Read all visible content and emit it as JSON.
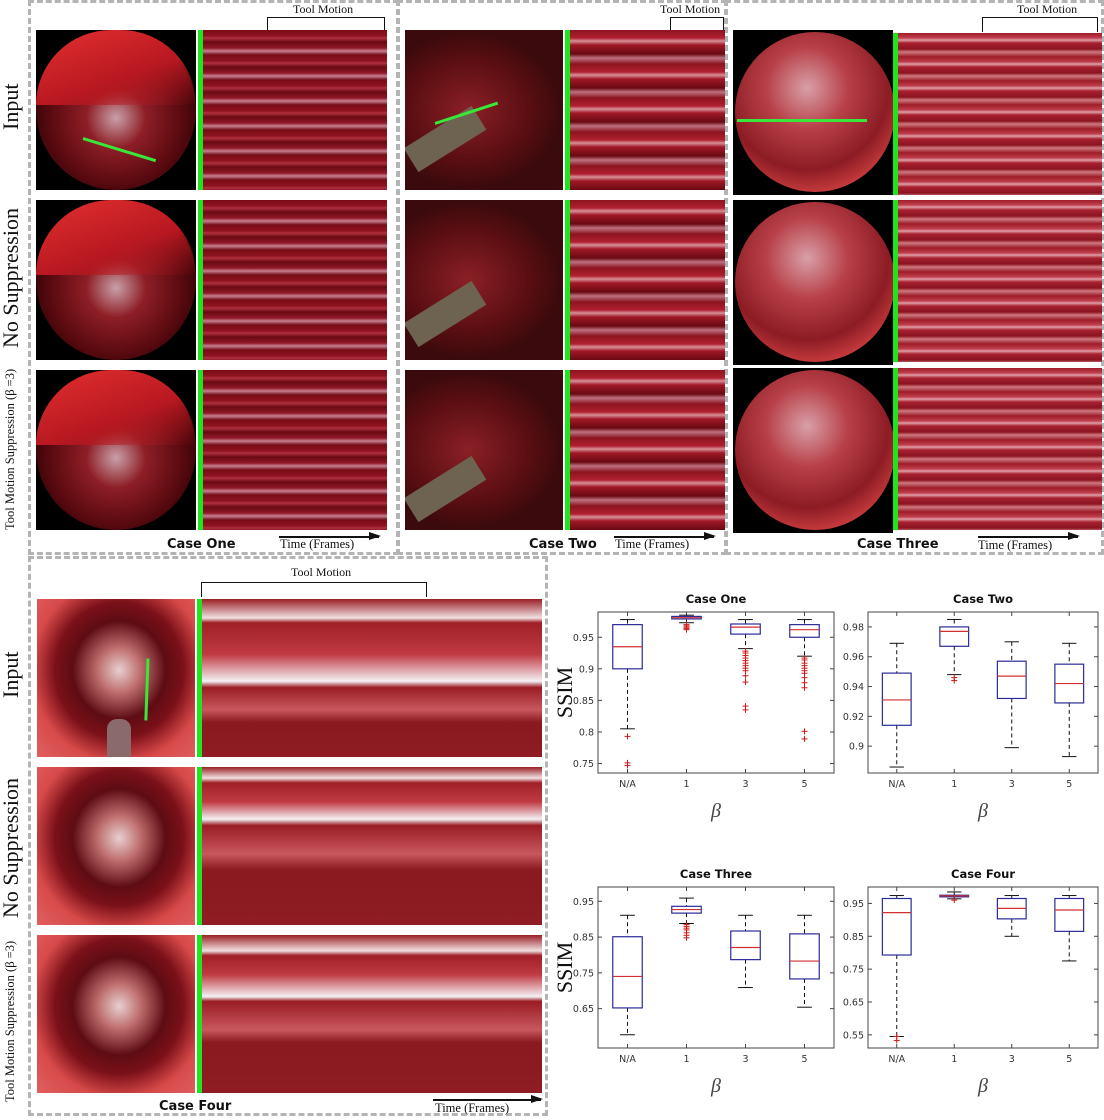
{
  "figure": {
    "row_labels": {
      "input": "Input",
      "no_suppression": "No Suppression",
      "suppression": "Tool Motion Suppression (β =3)"
    },
    "tool_motion_label": "Tool Motion",
    "time_label": "Time (Frames)",
    "cases": [
      {
        "id": "case-one",
        "title": "Case One"
      },
      {
        "id": "case-two",
        "title": "Case Two"
      },
      {
        "id": "case-three",
        "title": "Case Three"
      },
      {
        "id": "case-four",
        "title": "Case Four"
      }
    ],
    "colors": {
      "indicator_line": "#1ee51e",
      "panel_border": "#b4b4b4",
      "box": "#2b2b9a",
      "median": "#d03030",
      "outlier": "#d01818"
    }
  },
  "chart_data": [
    {
      "type": "box",
      "title": "Case One",
      "xlabel": "β",
      "ylabel": "SSIM",
      "categories": [
        "N/A",
        "1",
        "3",
        "5"
      ],
      "yticks": [
        0.75,
        0.8,
        0.85,
        0.9,
        0.95
      ],
      "ylim": [
        0.735,
        0.99
      ],
      "grid": false,
      "boxes": [
        {
          "whisker_low": 0.805,
          "q1": 0.9,
          "median": 0.935,
          "q3": 0.97,
          "whisker_high": 0.978,
          "outliers": [
            0.793,
            0.751,
            0.747
          ]
        },
        {
          "whisker_low": 0.973,
          "q1": 0.979,
          "median": 0.981,
          "q3": 0.983,
          "whisker_high": 0.985,
          "outliers": [
            0.97,
            0.968,
            0.966,
            0.964,
            0.962
          ]
        },
        {
          "whisker_low": 0.932,
          "q1": 0.955,
          "median": 0.966,
          "q3": 0.971,
          "whisker_high": 0.978,
          "outliers": [
            0.928,
            0.925,
            0.921,
            0.917,
            0.913,
            0.909,
            0.905,
            0.901,
            0.897,
            0.889,
            0.879,
            0.841,
            0.835
          ]
        },
        {
          "whisker_low": 0.92,
          "q1": 0.95,
          "median": 0.962,
          "q3": 0.97,
          "whisker_high": 0.978,
          "outliers": [
            0.917,
            0.914,
            0.909,
            0.905,
            0.901,
            0.897,
            0.893,
            0.886,
            0.878,
            0.87,
            0.801,
            0.789
          ]
        }
      ]
    },
    {
      "type": "box",
      "title": "Case Two",
      "xlabel": "β",
      "ylabel": "",
      "categories": [
        "N/A",
        "1",
        "3",
        "5"
      ],
      "yticks": [
        0.9,
        0.92,
        0.94,
        0.96,
        0.98
      ],
      "ylim": [
        0.882,
        0.99
      ],
      "grid": false,
      "boxes": [
        {
          "whisker_low": 0.886,
          "q1": 0.914,
          "median": 0.931,
          "q3": 0.949,
          "whisker_high": 0.969,
          "outliers": []
        },
        {
          "whisker_low": 0.948,
          "q1": 0.967,
          "median": 0.977,
          "q3": 0.98,
          "whisker_high": 0.985,
          "outliers": [
            0.946,
            0.944
          ]
        },
        {
          "whisker_low": 0.899,
          "q1": 0.932,
          "median": 0.947,
          "q3": 0.957,
          "whisker_high": 0.97,
          "outliers": []
        },
        {
          "whisker_low": 0.893,
          "q1": 0.929,
          "median": 0.942,
          "q3": 0.955,
          "whisker_high": 0.969,
          "outliers": []
        }
      ]
    },
    {
      "type": "box",
      "title": "Case Three",
      "xlabel": "β",
      "ylabel": "SSIM",
      "categories": [
        "N/A",
        "1",
        "3",
        "5"
      ],
      "yticks": [
        0.65,
        0.75,
        0.85,
        0.95
      ],
      "ylim": [
        0.54,
        0.99
      ],
      "grid": false,
      "boxes": [
        {
          "whisker_low": 0.577,
          "q1": 0.652,
          "median": 0.74,
          "q3": 0.851,
          "whisker_high": 0.911,
          "outliers": []
        },
        {
          "whisker_low": 0.888,
          "q1": 0.917,
          "median": 0.927,
          "q3": 0.936,
          "whisker_high": 0.959,
          "outliers": [
            0.885,
            0.88,
            0.875,
            0.87,
            0.862,
            0.855,
            0.848
          ]
        },
        {
          "whisker_low": 0.709,
          "q1": 0.787,
          "median": 0.821,
          "q3": 0.867,
          "whisker_high": 0.911,
          "outliers": []
        },
        {
          "whisker_low": 0.654,
          "q1": 0.733,
          "median": 0.783,
          "q3": 0.859,
          "whisker_high": 0.911,
          "outliers": []
        }
      ]
    },
    {
      "type": "box",
      "title": "Case Four",
      "xlabel": "β",
      "ylabel": "",
      "categories": [
        "N/A",
        "1",
        "3",
        "5"
      ],
      "yticks": [
        0.55,
        0.65,
        0.75,
        0.85,
        0.95
      ],
      "ylim": [
        0.51,
        1.0
      ],
      "grid": false,
      "boxes": [
        {
          "whisker_low": 0.545,
          "q1": 0.793,
          "median": 0.922,
          "q3": 0.965,
          "whisker_high": 0.974,
          "outliers": [
            0.545,
            0.533
          ]
        },
        {
          "whisker_low": 0.964,
          "q1": 0.97,
          "median": 0.973,
          "q3": 0.975,
          "whisker_high": 0.985,
          "outliers": [
            0.96
          ]
        },
        {
          "whisker_low": 0.85,
          "q1": 0.903,
          "median": 0.935,
          "q3": 0.965,
          "whisker_high": 0.974,
          "outliers": []
        },
        {
          "whisker_low": 0.775,
          "q1": 0.865,
          "median": 0.93,
          "q3": 0.965,
          "whisker_high": 0.974,
          "outliers": []
        }
      ]
    }
  ]
}
